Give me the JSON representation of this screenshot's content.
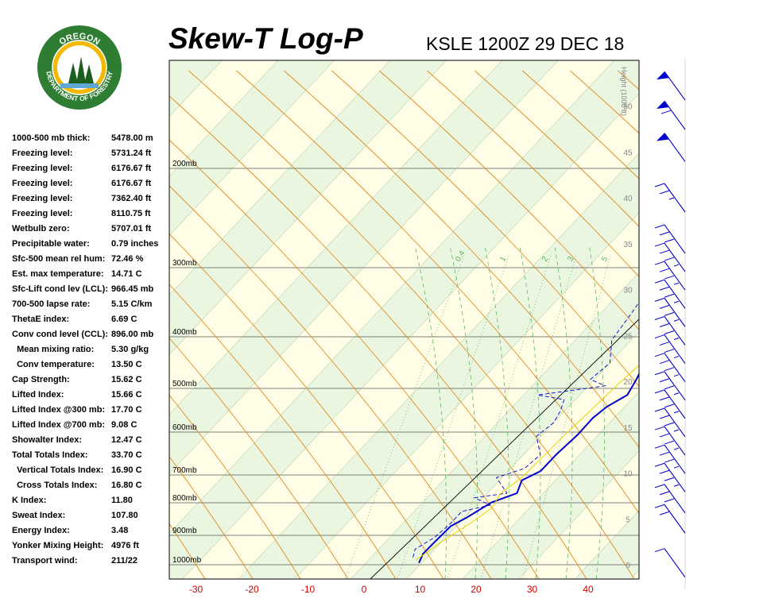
{
  "header": {
    "title": "Skew-T Log-P",
    "station_time": "KSLE 1200Z 29 DEC 18"
  },
  "logo": {
    "top_text": "OREGON",
    "bottom_text": "DEPARTMENT OF FORESTRY",
    "colors": {
      "ring": "#2e7d32",
      "inner": "#f5b800",
      "tree": "#1b5e20",
      "water": "#5fa8d3"
    }
  },
  "stats": [
    {
      "label": "1000-500 mb thick:",
      "value": "5478.00 m"
    },
    {
      "label": "Freezing level:",
      "value": "5731.24 ft"
    },
    {
      "label": "Freezing level:",
      "value": "6176.67 ft"
    },
    {
      "label": "Freezing level:",
      "value": "6176.67 ft"
    },
    {
      "label": "Freezing level:",
      "value": "7362.40 ft"
    },
    {
      "label": "Freezing level:",
      "value": "8110.75 ft"
    },
    {
      "label": "Wetbulb zero:",
      "value": "5707.01 ft"
    },
    {
      "label": "Precipitable water:",
      "value": "0.79 inches"
    },
    {
      "label": "Sfc-500 mean rel hum:",
      "value": "72.46 %"
    },
    {
      "label": "Est. max temperature:",
      "value": "14.71 C"
    },
    {
      "label": "Sfc-Lift cond lev (LCL):",
      "value": "966.45 mb"
    },
    {
      "label": "700-500 lapse rate:",
      "value": "5.15 C/km"
    },
    {
      "label": "ThetaE index:",
      "value": "6.69 C"
    },
    {
      "label": "Conv cond level (CCL):",
      "value": "896.00 mb"
    },
    {
      "label": "  Mean mixing ratio:",
      "value": "5.30 g/kg"
    },
    {
      "label": "  Conv temperature:",
      "value": "13.50 C"
    },
    {
      "label": "Cap Strength:",
      "value": "15.62 C"
    },
    {
      "label": "Lifted Index:",
      "value": "15.66 C"
    },
    {
      "label": "Lifted Index @300 mb:",
      "value": "17.70 C"
    },
    {
      "label": "Lifted Index @700 mb:",
      "value": "9.08 C"
    },
    {
      "label": "Showalter Index:",
      "value": "12.47 C"
    },
    {
      "label": "Total Totals Index:",
      "value": "33.70 C"
    },
    {
      "label": "  Vertical Totals Index:",
      "value": "16.90 C"
    },
    {
      "label": "  Cross Totals Index:",
      "value": "16.80 C"
    },
    {
      "label": "K Index:",
      "value": "11.80"
    },
    {
      "label": "Sweat Index:",
      "value": "107.80"
    },
    {
      "label": "Energy Index:",
      "value": "3.48"
    },
    {
      "label": "Yonker Mixing Height:",
      "value": "4976 ft"
    },
    {
      "label": "Transport wind:",
      "value": "211/22"
    }
  ],
  "chart_data": {
    "type": "line",
    "title": "Skew-T Log-P",
    "xlabel": "",
    "ylabel": "",
    "x_ticks": [
      -30,
      -20,
      -10,
      0,
      10,
      20,
      30,
      40
    ],
    "pressure_levels": [
      "200mb",
      "300mb",
      "400mb",
      "500mb",
      "600mb",
      "700mb",
      "800mb",
      "900mb",
      "1000mb"
    ],
    "height_axis_label": "Height (1000 ft)",
    "height_ticks": [
      0,
      5,
      10,
      15,
      20,
      25,
      30,
      35,
      40,
      45,
      50
    ],
    "mixing_ratio_labels": [
      "0.4",
      "1",
      "2",
      "3",
      "5"
    ],
    "series": [
      {
        "name": "Temperature",
        "color": "#0000cc",
        "points": [
          [
            9.5,
            0.2
          ],
          [
            8.7,
            1.2
          ],
          [
            8.8,
            2.5
          ],
          [
            9,
            4.2
          ],
          [
            10.5,
            5.2
          ],
          [
            12.3,
            6.8
          ],
          [
            15.3,
            7.8
          ],
          [
            14,
            9.2
          ],
          [
            15.8,
            10.2
          ],
          [
            15.8,
            12
          ],
          [
            16.3,
            14.2
          ],
          [
            16.2,
            16
          ],
          [
            16.8,
            17.2
          ],
          [
            18.5,
            18.5
          ],
          [
            17.5,
            20.2
          ],
          [
            15.5,
            23
          ],
          [
            13.7,
            26
          ],
          [
            11,
            30
          ],
          [
            8.6,
            33.5
          ],
          [
            6.2,
            38.5
          ],
          [
            5.3,
            43
          ],
          [
            6,
            48
          ],
          [
            15.2,
            48.5
          ],
          [
            19.3,
            52
          ]
        ]
      },
      {
        "name": "Dewpoint",
        "color": "#0000cc",
        "dashed": true,
        "points": [
          [
            7.5,
            0.8
          ],
          [
            6.5,
            1.7
          ],
          [
            8,
            3
          ],
          [
            8.5,
            4.5
          ],
          [
            8.5,
            5.8
          ],
          [
            12.5,
            6.5
          ],
          [
            8.5,
            7.3
          ],
          [
            13.5,
            7.8
          ],
          [
            9,
            9.5
          ],
          [
            12.5,
            10.5
          ],
          [
            13,
            12
          ],
          [
            9.2,
            14
          ],
          [
            10,
            15.5
          ],
          [
            9.2,
            16.8
          ],
          [
            8,
            18
          ],
          [
            2.5,
            18.5
          ],
          [
            13,
            19.5
          ],
          [
            9.3,
            20.2
          ],
          [
            10,
            22
          ],
          [
            6.5,
            24.5
          ],
          [
            5.5,
            27.5
          ],
          [
            4,
            31
          ],
          [
            0.3,
            36
          ],
          [
            -1.5,
            40.5
          ],
          [
            -2.5,
            43.5
          ],
          [
            0.5,
            47
          ],
          [
            13.5,
            55.5
          ]
        ]
      },
      {
        "name": "Parcel",
        "color": "#e6d200",
        "points": [
          [
            8.5,
            0.5
          ],
          [
            10,
            2.5
          ],
          [
            12,
            4.5
          ],
          [
            13.3,
            6.2
          ],
          [
            12.4,
            7.7
          ],
          [
            13.5,
            9.5
          ],
          [
            13.8,
            11.5
          ],
          [
            14,
            14
          ],
          [
            14.5,
            16.5
          ],
          [
            15,
            19.5
          ],
          [
            15.7,
            22
          ],
          [
            15.5,
            24.5
          ],
          [
            15,
            26
          ]
        ]
      }
    ],
    "wind_barbs": [
      {
        "height_kft": 0.2,
        "speed_kt": 10
      },
      {
        "height_kft": 5,
        "speed_kt": 20
      },
      {
        "height_kft": 7.2,
        "speed_kt": 30
      },
      {
        "height_kft": 9.5,
        "speed_kt": 35
      },
      {
        "height_kft": 11.5,
        "speed_kt": 35
      },
      {
        "height_kft": 13.5,
        "speed_kt": 35
      },
      {
        "height_kft": 15.5,
        "speed_kt": 35
      },
      {
        "height_kft": 17.5,
        "speed_kt": 35
      },
      {
        "height_kft": 19.5,
        "speed_kt": 35
      },
      {
        "height_kft": 21.5,
        "speed_kt": 35
      },
      {
        "height_kft": 23.5,
        "speed_kt": 35
      },
      {
        "height_kft": 25.5,
        "speed_kt": 35
      },
      {
        "height_kft": 27.5,
        "speed_kt": 35
      },
      {
        "height_kft": 29.5,
        "speed_kt": 35
      },
      {
        "height_kft": 31.5,
        "speed_kt": 35
      },
      {
        "height_kft": 33.5,
        "speed_kt": 35
      },
      {
        "height_kft": 35.5,
        "speed_kt": 30
      },
      {
        "height_kft": 40,
        "speed_kt": 25
      },
      {
        "height_kft": 45.5,
        "speed_kt": 50
      },
      {
        "height_kft": 49,
        "speed_kt": 60
      },
      {
        "height_kft": 52.2,
        "speed_kt": 50
      }
    ]
  }
}
